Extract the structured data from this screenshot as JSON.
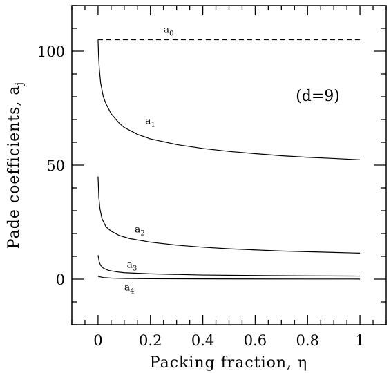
{
  "chart_data": {
    "type": "line",
    "xlabel": "Packing fraction, η",
    "ylabel": "Pade coefficients, a",
    "ylabel_sub": "j",
    "annotation": "(d=9)",
    "xlim": [
      -0.1,
      1.1
    ],
    "ylim": [
      -20,
      120
    ],
    "x_ticks": [
      0,
      0.2,
      0.4,
      0.6,
      0.8,
      1
    ],
    "x_tick_labels": [
      "0",
      "0.2",
      "0.4",
      "0.6",
      "0.8",
      "1"
    ],
    "y_ticks": [
      0,
      50,
      100
    ],
    "y_tick_labels": [
      "0",
      "50",
      "100"
    ],
    "grid": false,
    "legend": "none",
    "series": [
      {
        "name": "a",
        "sub": "0",
        "style": "dashed",
        "label_at": [
          0.25,
          108
        ],
        "x": [
          0,
          1
        ],
        "y": [
          105,
          105
        ]
      },
      {
        "name": "a",
        "sub": "1",
        "style": "solid",
        "label_at": [
          0.18,
          68
        ],
        "x": [
          0,
          0.002,
          0.005,
          0.01,
          0.02,
          0.03,
          0.05,
          0.08,
          0.1,
          0.15,
          0.2,
          0.3,
          0.4,
          0.5,
          0.6,
          0.7,
          0.8,
          0.9,
          1.0
        ],
        "y": [
          105,
          98,
          92,
          86,
          80,
          77,
          72.5,
          68.5,
          66.5,
          63.5,
          61.5,
          59,
          57.3,
          56,
          55,
          54.1,
          53.4,
          52.9,
          52.3
        ]
      },
      {
        "name": "a",
        "sub": "2",
        "style": "solid",
        "label_at": [
          0.14,
          20.5
        ],
        "x": [
          0,
          0.003,
          0.007,
          0.015,
          0.03,
          0.05,
          0.08,
          0.12,
          0.2,
          0.3,
          0.4,
          0.5,
          0.6,
          0.7,
          0.8,
          0.9,
          1.0
        ],
        "y": [
          45,
          36,
          31,
          26.5,
          23,
          21,
          19.2,
          17.8,
          16.2,
          14.9,
          14,
          13.3,
          12.8,
          12.3,
          12,
          11.7,
          11.4
        ]
      },
      {
        "name": "a",
        "sub": "3",
        "style": "solid",
        "label_at": [
          0.11,
          5
        ],
        "x": [
          0,
          0.005,
          0.01,
          0.02,
          0.04,
          0.07,
          0.1,
          0.2,
          0.4,
          0.6,
          0.8,
          1.0
        ],
        "y": [
          10.5,
          7.3,
          6,
          4.8,
          3.8,
          3.2,
          2.8,
          2.3,
          1.8,
          1.6,
          1.45,
          1.35
        ]
      },
      {
        "name": "a",
        "sub": "4",
        "style": "solid",
        "label_at": [
          0.1,
          -5
        ],
        "x": [
          0,
          0.02,
          0.05,
          0.1,
          0.2,
          0.4,
          0.6,
          0.8,
          1.0
        ],
        "y": [
          1.2,
          0.7,
          0.45,
          0.3,
          0.2,
          0.12,
          0.08,
          0.06,
          0.05
        ]
      }
    ]
  }
}
